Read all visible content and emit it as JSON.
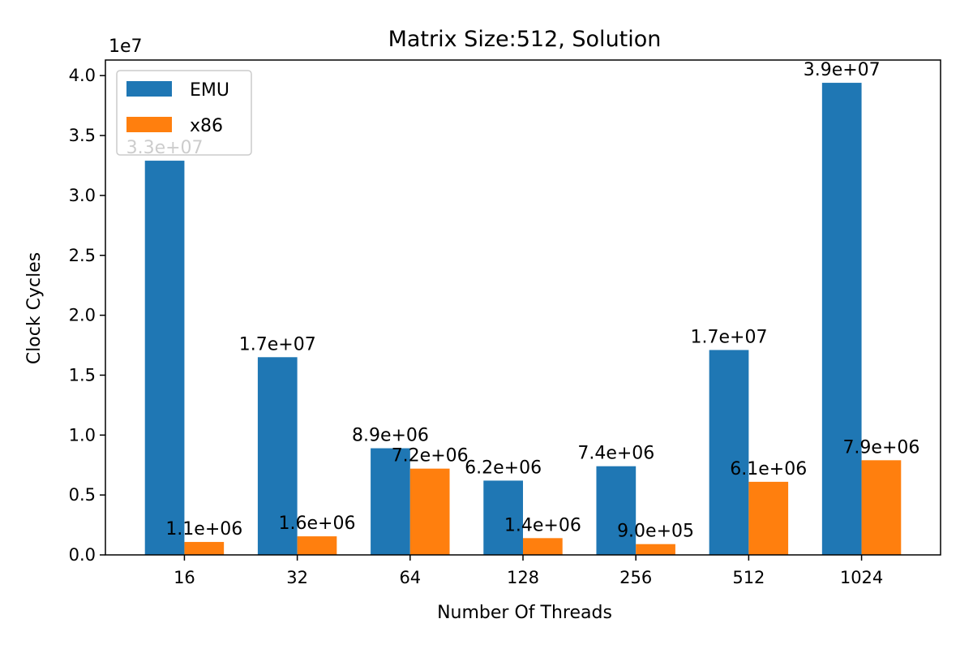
{
  "chart_data": {
    "type": "bar",
    "title": "Matrix Size:512, Solution",
    "xlabel": "Number Of Threads",
    "ylabel": "Clock Cycles",
    "y_scale_label": "1e7",
    "categories": [
      "16",
      "32",
      "64",
      "128",
      "256",
      "512",
      "1024"
    ],
    "series": [
      {
        "name": "EMU",
        "color": "#1f77b4",
        "values": [
          32900000,
          16500000,
          8900000,
          6200000,
          7400000,
          17100000,
          39400000
        ],
        "labels": [
          "3.3e+07",
          "1.7e+07",
          "8.9e+06",
          "6.2e+06",
          "7.4e+06",
          "1.7e+07",
          "3.9e+07"
        ]
      },
      {
        "name": "x86",
        "color": "#ff7f0e",
        "values": [
          1080000,
          1550000,
          7200000,
          1400000,
          900000,
          6100000,
          7900000
        ],
        "labels": [
          "1.1e+06",
          "1.6e+06",
          "7.2e+06",
          "1.4e+06",
          "9.0e+05",
          "6.1e+06",
          "7.9e+06"
        ]
      }
    ],
    "ylim": [
      0,
      41300000
    ],
    "yticks": [
      {
        "value": 0,
        "label": "0.0"
      },
      {
        "value": 5000000,
        "label": "0.5"
      },
      {
        "value": 10000000,
        "label": "1.0"
      },
      {
        "value": 15000000,
        "label": "1.5"
      },
      {
        "value": 20000000,
        "label": "2.0"
      },
      {
        "value": 25000000,
        "label": "2.5"
      },
      {
        "value": 30000000,
        "label": "3.0"
      },
      {
        "value": 35000000,
        "label": "3.5"
      },
      {
        "value": 40000000,
        "label": "4.0"
      }
    ],
    "grid": false,
    "legend_position": "top-left"
  }
}
